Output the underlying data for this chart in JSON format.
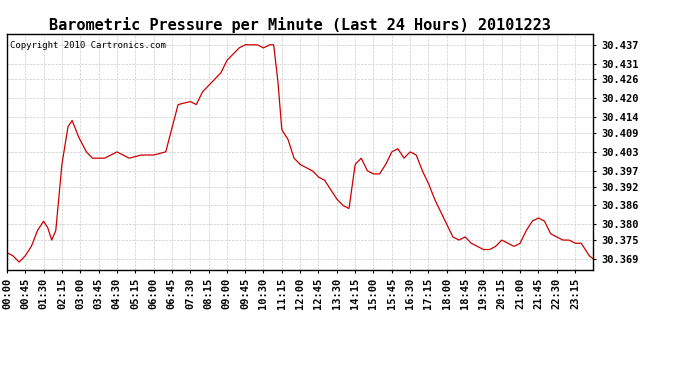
{
  "title": "Barometric Pressure per Minute (Last 24 Hours) 20101223",
  "copyright": "Copyright 2010 Cartronics.com",
  "line_color": "#cc0000",
  "background_color": "#ffffff",
  "grid_color": "#cccccc",
  "yticks": [
    30.369,
    30.375,
    30.38,
    30.386,
    30.392,
    30.397,
    30.403,
    30.409,
    30.414,
    30.42,
    30.426,
    30.431,
    30.437
  ],
  "ylim": [
    30.3655,
    30.4405
  ],
  "xtick_labels": [
    "00:00",
    "00:45",
    "01:30",
    "02:15",
    "03:00",
    "03:45",
    "04:30",
    "05:15",
    "06:00",
    "06:45",
    "07:30",
    "08:15",
    "09:00",
    "09:45",
    "10:30",
    "11:15",
    "12:00",
    "12:45",
    "13:30",
    "14:15",
    "15:00",
    "15:45",
    "16:30",
    "17:15",
    "18:00",
    "18:45",
    "19:30",
    "20:15",
    "21:00",
    "21:45",
    "22:30",
    "23:15"
  ],
  "title_fontsize": 11,
  "tick_fontsize": 7.5,
  "copyright_fontsize": 6.5,
  "figsize": [
    6.9,
    3.75
  ],
  "dpi": 100
}
